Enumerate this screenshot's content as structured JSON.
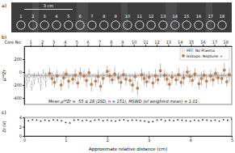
{
  "chart_data": [
    {
      "type": "image",
      "panel_label": "a)",
      "scale_bar": "3 cm",
      "labels": [
        "1",
        "2",
        "3",
        "4",
        "5",
        "6",
        "7",
        "8",
        "9",
        "10",
        "11",
        "12",
        "13",
        "14",
        "15",
        "16",
        "17",
        "18"
      ],
      "x": [
        0.15,
        0.43,
        0.7,
        0.98,
        1.26,
        1.53,
        1.81,
        2.09,
        2.36,
        2.64,
        2.92,
        3.19,
        3.47,
        3.75,
        4.02,
        4.3,
        4.58,
        4.85
      ],
      "xlim": [
        0,
        5
      ]
    },
    {
      "type": "scatter",
      "panel_label": "b)",
      "ylabel": "μ⁹⁴Zr",
      "x2label": "Core No.",
      "xlim": [
        0,
        5
      ],
      "x2ticks": [
        {
          "value": 0.15,
          "label": "1"
        },
        {
          "value": 0.43,
          "label": "2"
        },
        {
          "value": 0.7,
          "label": "3"
        },
        {
          "value": 0.98,
          "label": "4"
        },
        {
          "value": 1.26,
          "label": "5"
        },
        {
          "value": 1.53,
          "label": "6"
        },
        {
          "value": 1.81,
          "label": "7"
        },
        {
          "value": 2.09,
          "label": "8"
        },
        {
          "value": 2.36,
          "label": "9"
        },
        {
          "value": 2.64,
          "label": "10"
        },
        {
          "value": 2.92,
          "label": "11"
        },
        {
          "value": 3.19,
          "label": "12"
        },
        {
          "value": 3.47,
          "label": "13"
        },
        {
          "value": 3.75,
          "label": "14"
        },
        {
          "value": 4.02,
          "label": "15"
        },
        {
          "value": 4.3,
          "label": "16"
        },
        {
          "value": 4.58,
          "label": "17"
        },
        {
          "value": 4.85,
          "label": "18"
        }
      ],
      "ylim": [
        -500,
        400
      ],
      "yticks": [
        -400,
        -200,
        0,
        200
      ],
      "legend": "top-right",
      "series": [
        {
          "name": "MIT: No Plasma",
          "color": "#8a8a8a",
          "marker": "open-circle",
          "x": [
            0.06,
            0.12,
            0.18,
            0.24,
            0.34,
            0.4,
            0.46,
            0.52
          ],
          "values": [
            -150,
            -60,
            -210,
            -100,
            -80,
            -180,
            -40,
            -120
          ],
          "errors": [
            90,
            100,
            80,
            95,
            85,
            105,
            75,
            110
          ]
        },
        {
          "name": "Isotopx: Neptune +",
          "color": "#e07b39",
          "marker": "circle",
          "x": [
            0.61,
            0.67,
            0.73,
            0.79,
            0.89,
            0.95,
            1.01,
            1.07,
            1.17,
            1.23,
            1.29,
            1.35,
            1.44,
            1.5,
            1.56,
            1.62,
            1.72,
            1.78,
            1.84,
            1.9,
            2.0,
            2.06,
            2.12,
            2.18,
            2.27,
            2.33,
            2.39,
            2.45,
            2.55,
            2.61,
            2.67,
            2.73,
            2.83,
            2.89,
            2.95,
            3.01,
            3.1,
            3.16,
            3.22,
            3.28,
            3.38,
            3.44,
            3.5,
            3.56,
            3.66,
            3.72,
            3.78,
            3.84,
            3.93,
            3.99,
            4.05,
            4.11,
            4.21,
            4.27,
            4.33,
            4.39,
            4.49,
            4.55,
            4.61,
            4.67,
            4.76,
            4.82,
            4.88,
            4.94
          ],
          "values": [
            -20,
            -100,
            -160,
            -60,
            -200,
            -90,
            -30,
            -140,
            -110,
            -50,
            -170,
            -20,
            -60,
            -130,
            -10,
            -190,
            -140,
            -70,
            -220,
            -100,
            10,
            -60,
            -120,
            -30,
            -90,
            -160,
            -40,
            -110,
            -130,
            -200,
            -70,
            -250,
            -40,
            -100,
            -150,
            -80,
            -170,
            -60,
            -120,
            20,
            -50,
            -110,
            -190,
            -80,
            -120,
            -40,
            -160,
            -90,
            0,
            -70,
            -130,
            -30,
            -180,
            -100,
            -50,
            -140,
            -60,
            -120,
            -20,
            -90,
            -100,
            30,
            -150,
            -40
          ],
          "errors": [
            90,
            100,
            80,
            95,
            85,
            105,
            75,
            110,
            90,
            100,
            80,
            95,
            85,
            105,
            75,
            110,
            90,
            100,
            80,
            95,
            85,
            105,
            75,
            110,
            90,
            100,
            80,
            95,
            85,
            105,
            75,
            110,
            90,
            100,
            80,
            95,
            85,
            105,
            75,
            110,
            90,
            100,
            80,
            95,
            85,
            105,
            75,
            110,
            90,
            100,
            80,
            95,
            85,
            105,
            75,
            110,
            90,
            100,
            80,
            95,
            85,
            105,
            75,
            110
          ]
        }
      ],
      "mean": -55,
      "mean_error": 28,
      "annotation": "Mean μ⁹⁴Zr = -55 ± 28 (2SD, n = 151), MSWD (of weighted mean) = 1.01"
    },
    {
      "type": "scatter",
      "panel_label": "c)",
      "ylabel": "Zr (V)",
      "xlabel": "Approximate relative distance (cm)",
      "xlim": [
        0,
        5
      ],
      "xticks": [
        0,
        1,
        2,
        3,
        4,
        5
      ],
      "ylim": [
        0,
        4
      ],
      "yticks": [
        0,
        2,
        4
      ],
      "color": "#222222",
      "x": [
        0,
        0.1,
        0.2,
        0.3,
        0.4,
        0.5,
        0.6,
        0.7,
        0.8,
        0.9,
        1,
        1.1,
        1.2,
        1.3,
        1.4,
        1.5,
        1.6,
        1.7,
        1.8,
        1.9,
        2,
        2.1,
        2.2,
        2.3,
        2.4,
        2.5,
        2.6,
        2.7,
        2.8,
        2.9,
        3,
        3.1,
        3.2,
        3.3,
        3.4,
        3.5,
        3.6,
        3.7,
        3.8,
        3.9,
        4,
        4.1,
        4.2,
        4.3,
        4.4,
        4.5,
        4.6,
        4.7,
        4.8,
        4.9,
        5
      ],
      "values": [
        3.4,
        3.3,
        3.5,
        3.4,
        3.2,
        3.4,
        3.3,
        3.5,
        3.4,
        3.3,
        2.9,
        2.8,
        3.4,
        3.5,
        3.3,
        3.4,
        3.2,
        3.4,
        3.5,
        3.3,
        3.4,
        3.3,
        3.2,
        3.4,
        3.5,
        3.3,
        3.4,
        3.4,
        3.3,
        3.2,
        3.0,
        3.1,
        3.4,
        3.5,
        3.3,
        3.4,
        3.3,
        3.5,
        3.4,
        3.3,
        3.2,
        3.4,
        3.3,
        3.5,
        3.4,
        3.3,
        3.4,
        3.2,
        3.5,
        3.4,
        3.6
      ]
    }
  ]
}
